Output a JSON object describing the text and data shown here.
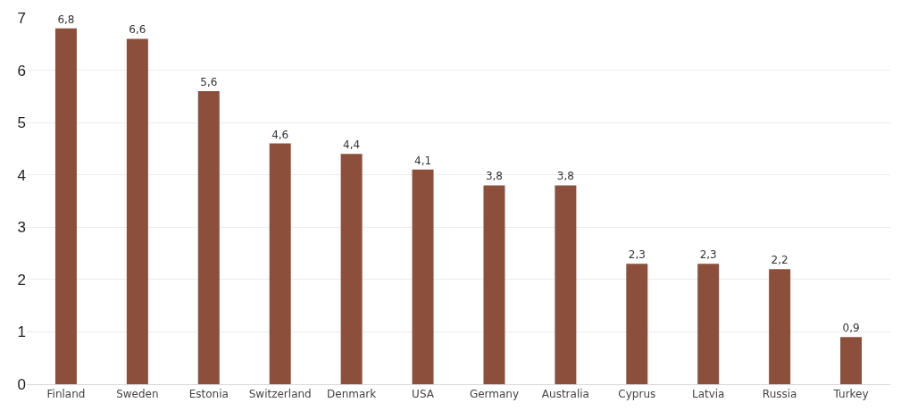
{
  "chart_data": {
    "type": "bar",
    "categories": [
      "Finland",
      "Sweden",
      "Estonia",
      "Switzerland",
      "Denmark",
      "USA",
      "Germany",
      "Australia",
      "Cyprus",
      "Latvia",
      "Russia",
      "Turkey"
    ],
    "values": [
      6.8,
      6.6,
      5.6,
      4.6,
      4.4,
      4.1,
      3.8,
      3.8,
      2.3,
      2.3,
      2.2,
      0.9
    ],
    "value_labels": [
      "6,8",
      "6,6",
      "5,6",
      "4,6",
      "4,4",
      "4,1",
      "3,8",
      "3,8",
      "2,3",
      "2,3",
      "2,2",
      "0,9"
    ],
    "color": "#8c4f3c",
    "ylim": [
      0,
      7
    ],
    "yticks": [
      0,
      1,
      2,
      3,
      4,
      5,
      6,
      7
    ],
    "grid": "y"
  }
}
